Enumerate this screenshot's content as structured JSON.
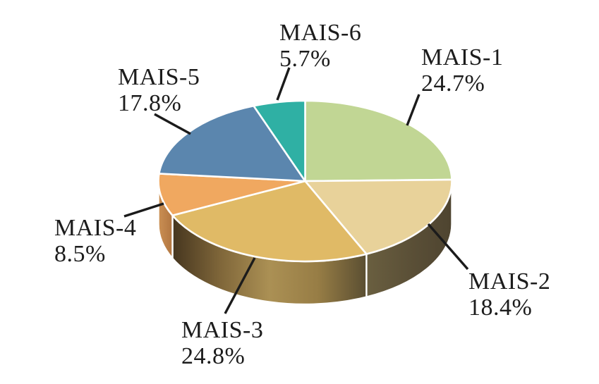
{
  "chart_data": {
    "type": "pie",
    "projection": "3d",
    "title": "",
    "direction": "clockwise",
    "start_angle_deg": 0,
    "legend_position": "none",
    "grid": false,
    "background_color": "#ffffff",
    "slice_border_color": "#ffffff",
    "leader_line_color": "#1b1b1b",
    "label_text_color": "#1c1c1c",
    "label_format": "name above percent",
    "categories": [
      "MAIS-1",
      "MAIS-2",
      "MAIS-3",
      "MAIS-4",
      "MAIS-5",
      "MAIS-6"
    ],
    "values": [
      24.7,
      18.4,
      24.8,
      8.5,
      17.8,
      5.7
    ],
    "slices": [
      {
        "label": "MAIS-1",
        "value": 24.7,
        "display": "24.7%",
        "color": "#c1d694"
      },
      {
        "label": "MAIS-2",
        "value": 18.4,
        "display": "18.4%",
        "color": "#e8d29a",
        "side_stops": [
          "#6a5f40",
          "#5b5037",
          "#4e4430"
        ]
      },
      {
        "label": "MAIS-3",
        "value": 24.8,
        "display": "24.8%",
        "color": "#e0ba66",
        "side_stops": [
          "#46361f",
          "#80673a",
          "#ab9054",
          "#977d45",
          "#5a4e32"
        ]
      },
      {
        "label": "MAIS-4",
        "value": 8.5,
        "display": "8.5%",
        "color": "#f0a860",
        "side_stops": [
          "#cb9054",
          "#b17540"
        ]
      },
      {
        "label": "MAIS-5",
        "value": 17.8,
        "display": "17.8%",
        "color": "#5b86ae"
      },
      {
        "label": "MAIS-6",
        "value": 5.7,
        "display": "5.7%",
        "color": "#2fb0a4"
      }
    ]
  }
}
